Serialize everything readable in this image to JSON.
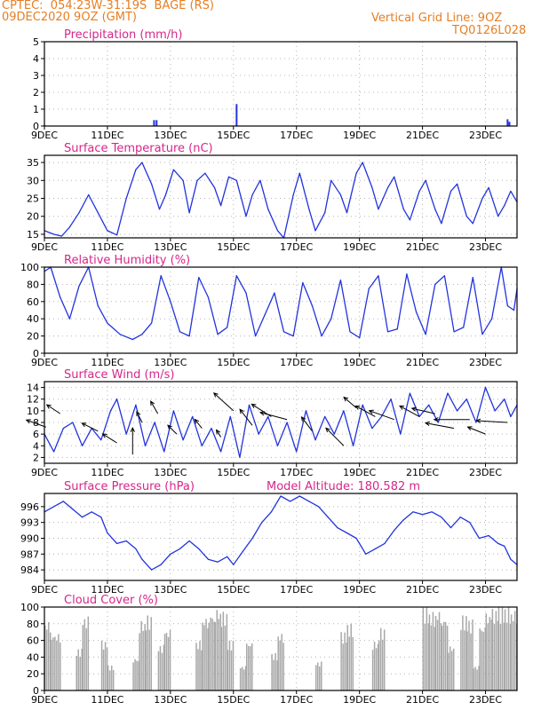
{
  "header": {
    "left_line1": "CPTEC:  054:23W-31:19S  BAGE (RS)",
    "left_line2": "09DEC2020 9OZ (GMT)",
    "right_line1": "Vertical Grid Line: 9OZ",
    "right_line2": "TQ0126L028"
  },
  "colors": {
    "header": "#e67e22",
    "title": "#d6268a",
    "series": "#2233dd",
    "cloud": "#a8a8a8",
    "axis": "#000000",
    "grid": "#b4b4b4"
  },
  "x_axis": {
    "ticks": [
      9,
      11,
      13,
      15,
      17,
      19,
      21,
      23
    ],
    "tick_labels": [
      "9DEC",
      "11DEC",
      "13DEC",
      "15DEC",
      "17DEC",
      "19DEC",
      "21DEC",
      "23DEC"
    ],
    "range": [
      9.0,
      24.0
    ]
  },
  "chart_data": [
    {
      "type": "bar",
      "title": "Precipitation (mm/h)",
      "ylim": [
        0,
        5
      ],
      "yticks": [
        0,
        1,
        2,
        3,
        4,
        5
      ],
      "x": [
        9.0,
        12.48,
        12.56,
        15.1,
        23.7,
        23.76
      ],
      "values": [
        0.05,
        0.35,
        0.35,
        1.3,
        0.4,
        0.25
      ]
    },
    {
      "type": "line",
      "title": "Surface Temperature (nC)",
      "ylim": [
        14,
        37
      ],
      "yticks": [
        15,
        20,
        25,
        30,
        35
      ],
      "x": [
        9.0,
        9.3,
        9.55,
        9.8,
        10.1,
        10.4,
        10.7,
        11.0,
        11.3,
        11.6,
        11.9,
        12.1,
        12.4,
        12.65,
        12.85,
        13.1,
        13.4,
        13.6,
        13.85,
        14.1,
        14.4,
        14.6,
        14.85,
        15.1,
        15.4,
        15.6,
        15.85,
        16.1,
        16.4,
        16.6,
        16.9,
        17.1,
        17.4,
        17.6,
        17.9,
        18.1,
        18.4,
        18.6,
        18.9,
        19.1,
        19.4,
        19.6,
        19.9,
        20.1,
        20.4,
        20.6,
        20.9,
        21.1,
        21.4,
        21.6,
        21.9,
        22.1,
        22.4,
        22.6,
        22.9,
        23.1,
        23.4,
        23.6,
        23.8,
        24.0
      ],
      "values": [
        16,
        15,
        14.5,
        17,
        21,
        26,
        21,
        16,
        14.8,
        25,
        33,
        35,
        29,
        22,
        26,
        33,
        30,
        21,
        30,
        32,
        28,
        23,
        31,
        30,
        20,
        26,
        30,
        22,
        16,
        14,
        26,
        32,
        22,
        16,
        21,
        30,
        26,
        21,
        32,
        35,
        28,
        22,
        28,
        31,
        22,
        19,
        27,
        30,
        22,
        18,
        27,
        29,
        20,
        18,
        25,
        28,
        20,
        23,
        27,
        24
      ]
    },
    {
      "type": "line",
      "title": "Relative Humidity (%)",
      "ylim": [
        0,
        100
      ],
      "yticks": [
        0,
        20,
        40,
        60,
        80,
        100
      ],
      "x": [
        9.0,
        9.2,
        9.5,
        9.8,
        10.1,
        10.4,
        10.7,
        11.0,
        11.4,
        11.8,
        12.1,
        12.4,
        12.7,
        13.0,
        13.3,
        13.6,
        13.9,
        14.2,
        14.5,
        14.8,
        15.1,
        15.4,
        15.7,
        16.0,
        16.3,
        16.6,
        16.9,
        17.2,
        17.5,
        17.8,
        18.1,
        18.4,
        18.7,
        19.0,
        19.3,
        19.6,
        19.9,
        20.2,
        20.5,
        20.8,
        21.1,
        21.4,
        21.7,
        22.0,
        22.3,
        22.6,
        22.9,
        23.2,
        23.5,
        23.7,
        23.9,
        24.0
      ],
      "values": [
        95,
        100,
        65,
        40,
        78,
        100,
        55,
        35,
        22,
        16,
        22,
        35,
        90,
        60,
        25,
        20,
        88,
        65,
        22,
        30,
        90,
        70,
        20,
        45,
        70,
        25,
        20,
        82,
        55,
        20,
        40,
        85,
        25,
        18,
        75,
        90,
        25,
        28,
        92,
        48,
        22,
        80,
        90,
        25,
        30,
        88,
        22,
        40,
        100,
        55,
        50,
        75
      ]
    },
    {
      "type": "line",
      "title": "Surface Wind (m/s)",
      "ylim": [
        1,
        15
      ],
      "yticks": [
        2,
        4,
        6,
        8,
        10,
        12,
        14
      ],
      "x": [
        9.0,
        9.3,
        9.6,
        9.9,
        10.2,
        10.5,
        10.8,
        11.1,
        11.3,
        11.6,
        11.9,
        12.2,
        12.5,
        12.8,
        13.1,
        13.4,
        13.7,
        14.0,
        14.3,
        14.6,
        14.9,
        15.2,
        15.5,
        15.8,
        16.1,
        16.4,
        16.7,
        17.0,
        17.3,
        17.6,
        17.9,
        18.2,
        18.5,
        18.8,
        19.1,
        19.4,
        19.7,
        20.0,
        20.3,
        20.6,
        20.9,
        21.2,
        21.5,
        21.8,
        22.1,
        22.4,
        22.7,
        23.0,
        23.3,
        23.6,
        23.8,
        24.0
      ],
      "values": [
        6,
        3,
        7,
        8,
        4,
        7,
        5,
        10,
        12,
        6,
        11,
        4,
        8,
        3,
        10,
        5,
        9,
        4,
        7,
        3,
        9,
        2,
        11,
        6,
        9,
        4,
        8,
        3,
        10,
        5,
        9,
        6,
        10,
        4,
        11,
        7,
        9,
        12,
        6,
        13,
        9,
        11,
        8,
        13,
        10,
        12,
        8,
        14,
        10,
        12,
        9,
        11
      ]
    },
    {
      "type": "line",
      "title": "Surface Pressure (hPa)",
      "annotation": "Model Altitude: 180.582 m",
      "ylim": [
        982,
        998.5
      ],
      "yticks": [
        984,
        987,
        990,
        993,
        996
      ],
      "x": [
        9.0,
        9.3,
        9.6,
        9.9,
        10.2,
        10.5,
        10.8,
        11.0,
        11.3,
        11.6,
        11.9,
        12.1,
        12.4,
        12.7,
        13.0,
        13.3,
        13.6,
        13.9,
        14.2,
        14.5,
        14.8,
        15.0,
        15.3,
        15.6,
        15.9,
        16.2,
        16.5,
        16.8,
        17.1,
        17.4,
        17.7,
        18.0,
        18.3,
        18.6,
        18.9,
        19.2,
        19.5,
        19.8,
        20.1,
        20.4,
        20.7,
        21.0,
        21.3,
        21.6,
        21.9,
        22.2,
        22.5,
        22.8,
        23.1,
        23.4,
        23.6,
        23.8,
        24.0
      ],
      "values": [
        995,
        996,
        997,
        995.5,
        994,
        995,
        994,
        991,
        989,
        989.5,
        988,
        986,
        984,
        985,
        987,
        988,
        989.5,
        988,
        986,
        985.5,
        986.5,
        985,
        987.5,
        990,
        993,
        995,
        998,
        997,
        998,
        997,
        996,
        994,
        992,
        991,
        990,
        987,
        988,
        989,
        991.5,
        993.5,
        995,
        994.5,
        995,
        994,
        992,
        994,
        993,
        990,
        990.5,
        989,
        988.5,
        986,
        985
      ]
    },
    {
      "type": "area",
      "title": "Cloud Cover (%)",
      "ylim": [
        0,
        100
      ],
      "yticks": [
        0,
        20,
        40,
        60,
        80,
        100
      ],
      "x": [
        9.0,
        9.2,
        9.5,
        9.8,
        10.0,
        10.2,
        10.4,
        10.6,
        10.8,
        11.0,
        11.2,
        11.5,
        11.8,
        12.0,
        12.2,
        12.4,
        12.6,
        12.8,
        13.0,
        13.2,
        13.4,
        13.6,
        13.8,
        14.0,
        14.2,
        14.4,
        14.6,
        14.8,
        15.0,
        15.2,
        15.4,
        15.6,
        15.8,
        16.0,
        16.2,
        16.4,
        16.6,
        16.8,
        17.0,
        17.2,
        17.4,
        17.6,
        17.8,
        18.0,
        18.2,
        18.4,
        18.6,
        18.8,
        19.0,
        19.2,
        19.4,
        19.6,
        19.8,
        20.0,
        20.2,
        20.4,
        20.6,
        20.8,
        21.0,
        21.2,
        21.4,
        21.6,
        21.8,
        22.0,
        22.2,
        22.4,
        22.6,
        22.8,
        23.0,
        23.2,
        23.4,
        23.6,
        23.8,
        24.0
      ],
      "values": [
        85,
        70,
        0,
        0,
        50,
        90,
        0,
        0,
        60,
        30,
        0,
        0,
        40,
        85,
        90,
        0,
        55,
        75,
        0,
        0,
        0,
        0,
        60,
        90,
        95,
        100,
        95,
        60,
        0,
        30,
        60,
        0,
        0,
        0,
        45,
        70,
        0,
        0,
        0,
        0,
        0,
        35,
        0,
        0,
        0,
        70,
        80,
        0,
        0,
        0,
        60,
        75,
        0,
        0,
        0,
        0,
        0,
        0,
        100,
        95,
        98,
        90,
        55,
        0,
        90,
        85,
        30,
        80,
        95,
        98,
        100,
        100,
        98,
        95
      ]
    }
  ],
  "wind_barbs": [
    {
      "x": 9.05,
      "y": 7.2,
      "dx": -22,
      "dy": -8
    },
    {
      "x": 9.5,
      "y": 9.5,
      "dx": -15,
      "dy": -10
    },
    {
      "x": 10.7,
      "y": 6.5,
      "dx": -18,
      "dy": -9
    },
    {
      "x": 11.3,
      "y": 4.5,
      "dx": -16,
      "dy": -10
    },
    {
      "x": 11.8,
      "y": 2.5,
      "dx": 0,
      "dy": -30
    },
    {
      "x": 12.1,
      "y": 8.0,
      "dx": -6,
      "dy": -12
    },
    {
      "x": 12.6,
      "y": 9.5,
      "dx": -8,
      "dy": -14
    },
    {
      "x": 13.2,
      "y": 6.0,
      "dx": -10,
      "dy": -10
    },
    {
      "x": 14.0,
      "y": 7.0,
      "dx": -8,
      "dy": -10
    },
    {
      "x": 14.6,
      "y": 5.5,
      "dx": -5,
      "dy": -8
    },
    {
      "x": 15.0,
      "y": 10.0,
      "dx": -22,
      "dy": -20
    },
    {
      "x": 15.6,
      "y": 7.5,
      "dx": -14,
      "dy": -18
    },
    {
      "x": 16.2,
      "y": 9.0,
      "dx": -22,
      "dy": -14
    },
    {
      "x": 16.7,
      "y": 8.5,
      "dx": -30,
      "dy": -8
    },
    {
      "x": 17.5,
      "y": 6.5,
      "dx": -12,
      "dy": -16
    },
    {
      "x": 18.5,
      "y": 4.0,
      "dx": -20,
      "dy": -20
    },
    {
      "x": 18.9,
      "y": 10.5,
      "dx": -14,
      "dy": -12
    },
    {
      "x": 19.5,
      "y": 9.0,
      "dx": -22,
      "dy": -12
    },
    {
      "x": 20.1,
      "y": 8.5,
      "dx": -28,
      "dy": -10
    },
    {
      "x": 20.9,
      "y": 9.0,
      "dx": -22,
      "dy": -12
    },
    {
      "x": 21.4,
      "y": 9.5,
      "dx": -26,
      "dy": -6
    },
    {
      "x": 22.0,
      "y": 7.0,
      "dx": -32,
      "dy": -6
    },
    {
      "x": 22.5,
      "y": 8.5,
      "dx": -40,
      "dy": 0
    },
    {
      "x": 23.0,
      "y": 6.0,
      "dx": -20,
      "dy": -8
    },
    {
      "x": 23.7,
      "y": 8.0,
      "dx": -35,
      "dy": -2
    }
  ]
}
